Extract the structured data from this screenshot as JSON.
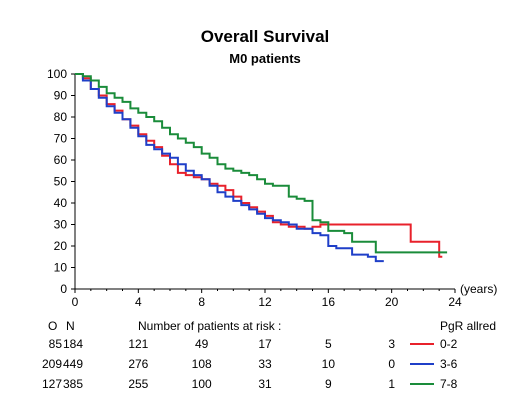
{
  "chart_data": {
    "type": "line",
    "title": "Overall Survival",
    "subtitle": "M0 patients",
    "xlabel": "(years)",
    "ylabel": "",
    "xlim": [
      0,
      24
    ],
    "ylim": [
      0,
      100
    ],
    "x_ticks": [
      "0",
      "4",
      "8",
      "12",
      "16",
      "20",
      "24"
    ],
    "y_ticks": [
      "0",
      "10",
      "20",
      "30",
      "40",
      "50",
      "60",
      "70",
      "80",
      "90",
      "100"
    ],
    "step": true,
    "legend_title": "PgR allred",
    "legend_position": "bottom-right",
    "series": [
      {
        "name": "0-2",
        "color": "#e8212b",
        "x": [
          0,
          0.5,
          1,
          1.5,
          2,
          2.5,
          3,
          3.5,
          4,
          4.5,
          5,
          5.5,
          6,
          6.5,
          7,
          7.5,
          8,
          8.5,
          9,
          9.5,
          10,
          10.5,
          11,
          11.5,
          12,
          12.5,
          13,
          13.5,
          14,
          14.5,
          15,
          15.5,
          16,
          17,
          18,
          19,
          20,
          21,
          21.2,
          22,
          23,
          23.2
        ],
        "y": [
          100,
          98,
          93,
          90,
          86,
          83,
          79,
          76,
          72,
          69,
          66,
          62,
          58,
          54,
          53,
          52,
          51,
          49,
          48,
          46,
          43,
          40,
          38,
          36,
          34,
          31,
          30,
          29,
          29,
          28,
          29,
          30,
          30,
          30,
          30,
          30,
          30,
          30,
          22,
          22,
          15,
          15
        ]
      },
      {
        "name": "3-6",
        "color": "#1f3fc8",
        "x": [
          0,
          0.5,
          1,
          1.5,
          2,
          2.5,
          3,
          3.5,
          4,
          4.5,
          5,
          5.5,
          6,
          6.5,
          7,
          7.5,
          8,
          8.5,
          9,
          9.5,
          10,
          10.5,
          11,
          11.5,
          12,
          12.5,
          13,
          13.5,
          14,
          14.5,
          15,
          15.5,
          16,
          16.5,
          17,
          17.5,
          18,
          18.5,
          19,
          19.5
        ],
        "y": [
          100,
          97,
          93,
          89,
          85,
          82,
          79,
          75,
          71,
          67,
          65,
          63,
          61,
          58,
          55,
          53,
          51,
          48,
          45,
          43,
          41,
          39,
          37,
          35,
          33,
          32,
          31,
          30,
          28,
          28,
          26,
          25,
          20,
          19,
          19,
          16,
          16,
          15,
          13,
          13
        ]
      },
      {
        "name": "7-8",
        "color": "#1a8c3a",
        "x": [
          0,
          0.5,
          1,
          1.5,
          2,
          2.5,
          3,
          3.5,
          4,
          4.5,
          5,
          5.5,
          6,
          6.5,
          7,
          7.5,
          8,
          8.5,
          9,
          9.5,
          10,
          10.5,
          11,
          11.5,
          12,
          12.5,
          13,
          13.5,
          14,
          14.5,
          15,
          15.5,
          16,
          16.5,
          17,
          17.5,
          18,
          19,
          20,
          21,
          22,
          23,
          23.5
        ],
        "y": [
          100,
          99,
          97,
          94,
          91,
          89,
          87,
          84,
          82,
          80,
          78,
          75,
          72,
          70,
          68,
          66,
          63,
          61,
          58,
          56,
          55,
          54,
          53,
          51,
          49,
          48,
          48,
          43,
          42,
          41,
          32,
          31,
          27,
          27,
          26,
          22,
          22,
          17,
          17,
          17,
          17,
          17,
          17
        ]
      }
    ],
    "risk_table": {
      "col_o": "O",
      "col_n": "N",
      "caption": "Number of patients at risk :",
      "rows": [
        {
          "o": "85",
          "n": "184",
          "counts": [
            "121",
            "49",
            "17",
            "5",
            "3"
          ]
        },
        {
          "o": "209",
          "n": "449",
          "counts": [
            "276",
            "108",
            "33",
            "10",
            "0"
          ]
        },
        {
          "o": "127",
          "n": "385",
          "counts": [
            "255",
            "100",
            "31",
            "9",
            "1"
          ]
        }
      ]
    }
  }
}
